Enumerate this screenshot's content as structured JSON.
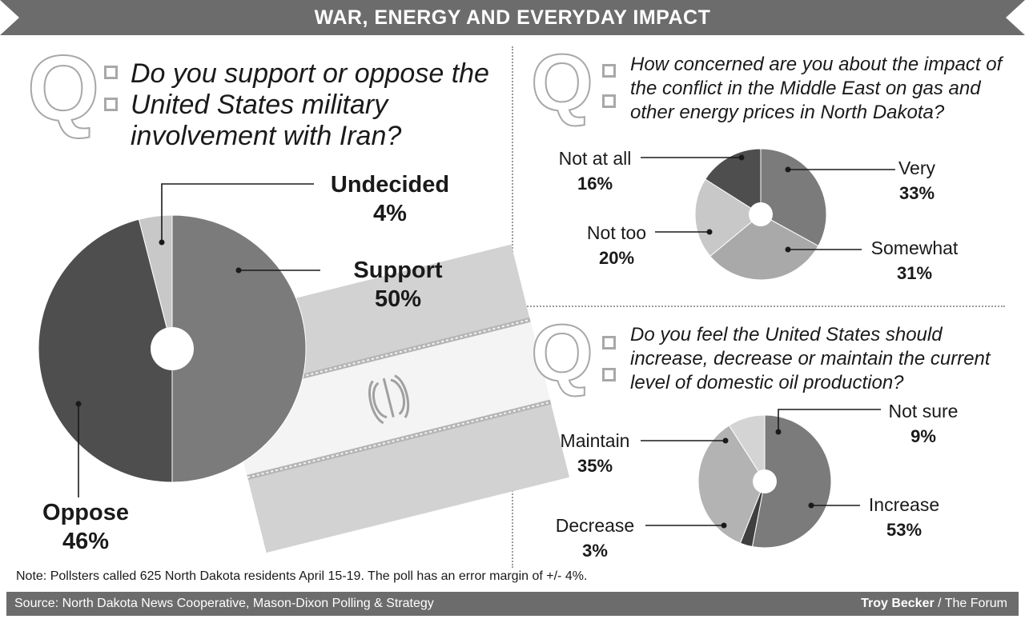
{
  "header": {
    "title": "WAR, ENERGY AND EVERYDAY IMPACT"
  },
  "questions": {
    "q1": "Do you support or oppose the United States military involvement with Iran?",
    "q2": "How concerned are you about the impact of the conflict in the Middle East on gas and other energy prices in North Dakota?",
    "q3": "Do you feel the United States should increase, decrease or maintain the current level of domestic oil production?"
  },
  "q_glyph": "Q",
  "chart_data": [
    {
      "type": "pie",
      "title": "",
      "categories": [
        "Support",
        "Oppose",
        "Undecided"
      ],
      "values": [
        50,
        46,
        4
      ],
      "labels": [
        "50%",
        "46%",
        "4%"
      ],
      "colors": [
        "#7b7b7b",
        "#4e4e4e",
        "#c8c8c8"
      ]
    },
    {
      "type": "pie",
      "title": "",
      "categories": [
        "Very",
        "Somewhat",
        "Not too",
        "Not at all"
      ],
      "values": [
        33,
        31,
        20,
        16
      ],
      "labels": [
        "33%",
        "31%",
        "20%",
        "16%"
      ],
      "colors": [
        "#7b7b7b",
        "#a9a9a9",
        "#c8c8c8",
        "#4e4e4e"
      ]
    },
    {
      "type": "pie",
      "title": "",
      "categories": [
        "Increase",
        "Decrease",
        "Maintain",
        "Not sure"
      ],
      "values": [
        53,
        3,
        35,
        9
      ],
      "labels": [
        "53%",
        "3%",
        "35%",
        "9%"
      ],
      "colors": [
        "#7b7b7b",
        "#3f3f3f",
        "#b3b3b3",
        "#d4d4d4"
      ]
    }
  ],
  "note": "Note: Pollsters called 625 North Dakota residents April 15-19. The poll has an error margin of +/- 4%.",
  "footer": {
    "source": "Source: North Dakota News Cooperative, Mason-Dixon Polling & Strategy",
    "credit_name": "Troy Becker",
    "credit_org": " / The Forum"
  }
}
